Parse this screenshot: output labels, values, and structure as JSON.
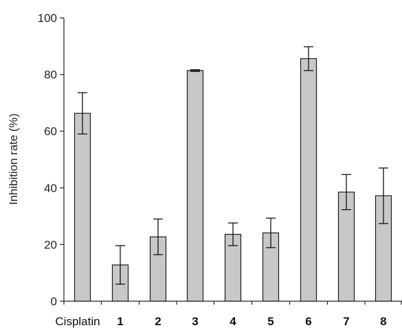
{
  "chart_data": {
    "type": "bar",
    "title": "",
    "xlabel": "",
    "ylabel": "Inhibition rate (%)",
    "ylim": [
      0,
      100
    ],
    "yticks": [
      0,
      20,
      40,
      60,
      80,
      100
    ],
    "grid": false,
    "legend": "none",
    "categories": [
      "Cisplatin",
      "1",
      "2",
      "3",
      "4",
      "5",
      "6",
      "7",
      "8"
    ],
    "bold_categories": [
      "1",
      "2",
      "3",
      "4",
      "5",
      "6",
      "7",
      "8"
    ],
    "values": [
      66.3,
      12.8,
      22.7,
      81.4,
      23.6,
      24.1,
      85.6,
      38.5,
      37.2
    ],
    "errors": [
      7.3,
      6.8,
      6.3,
      0.3,
      4.0,
      5.2,
      4.2,
      6.2,
      9.8
    ],
    "colors": {
      "bar_fill": "#c8c8c8",
      "bar_stroke": "#1a1a1a",
      "axis": "#222222"
    }
  }
}
